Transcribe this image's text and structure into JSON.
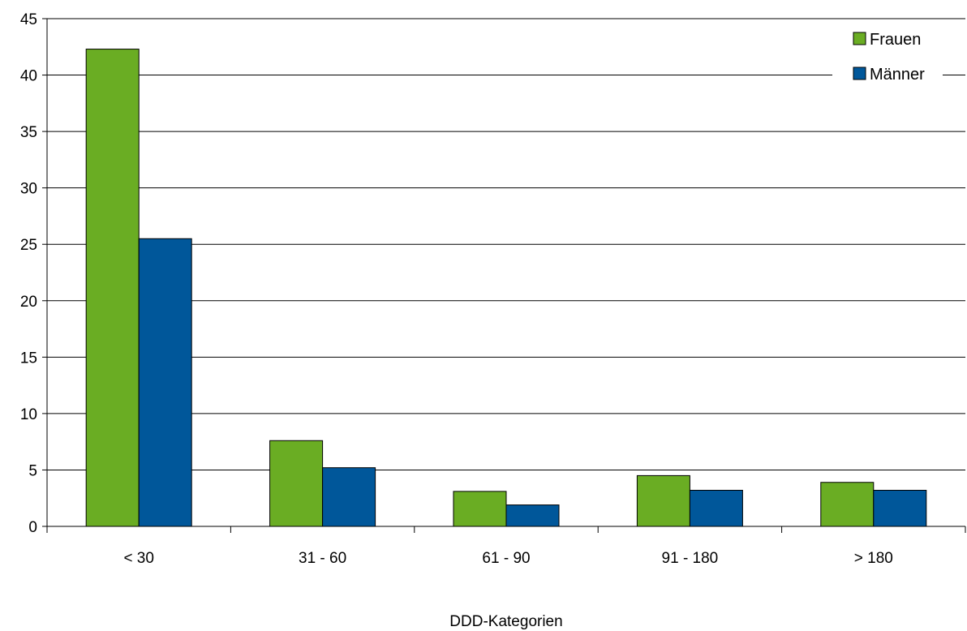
{
  "chart_data": {
    "type": "bar",
    "categories": [
      "< 30",
      "31 - 60",
      "61 - 90",
      "91 - 180",
      "> 180"
    ],
    "series": [
      {
        "name": "Frauen",
        "values": [
          42.3,
          7.6,
          3.1,
          4.5,
          3.9
        ],
        "color": "#6aad23"
      },
      {
        "name": "Männer",
        "values": [
          25.5,
          5.2,
          1.9,
          3.2,
          3.2
        ],
        "color": "#00579a"
      }
    ],
    "title": "",
    "xlabel": "DDD-Kategorien",
    "ylabel": "",
    "ylim": [
      0,
      45
    ],
    "yticks": [
      0,
      5,
      10,
      15,
      20,
      25,
      30,
      35,
      40,
      45
    ],
    "grid": true,
    "legend_position": "top-right"
  }
}
